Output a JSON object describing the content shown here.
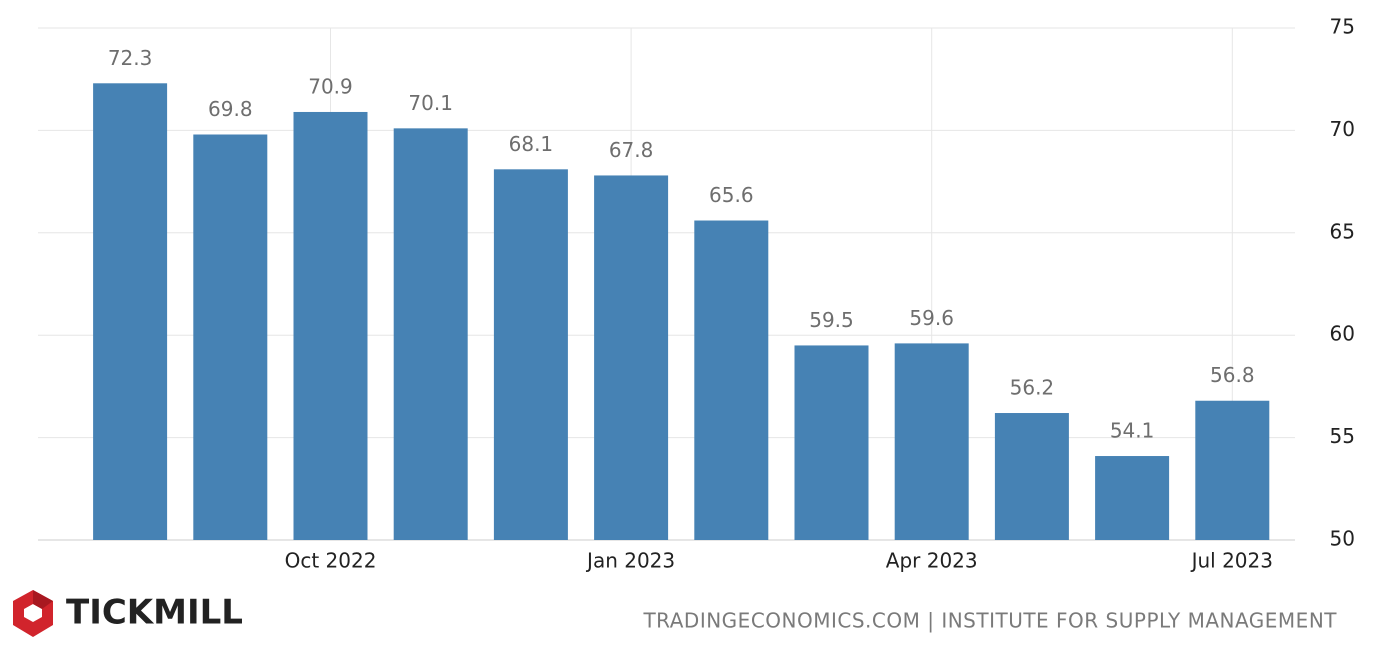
{
  "chart_data": {
    "type": "bar",
    "categories": [
      null,
      null,
      "Oct 2022",
      null,
      null,
      "Jan 2023",
      null,
      null,
      "Apr 2023",
      null,
      null,
      "Jul 2023"
    ],
    "values": [
      72.3,
      69.8,
      70.9,
      70.1,
      68.1,
      67.8,
      65.6,
      59.5,
      59.6,
      56.2,
      54.1,
      56.8
    ],
    "color": "#4682b4",
    "ylim": [
      50,
      75
    ],
    "yticks": [
      50,
      55,
      60,
      65,
      70,
      75
    ],
    "grid": true,
    "source": "TRADINGECONOMICS.COM | INSTITUTE FOR SUPPLY MANAGEMENT",
    "brand": "TICKMILL"
  }
}
